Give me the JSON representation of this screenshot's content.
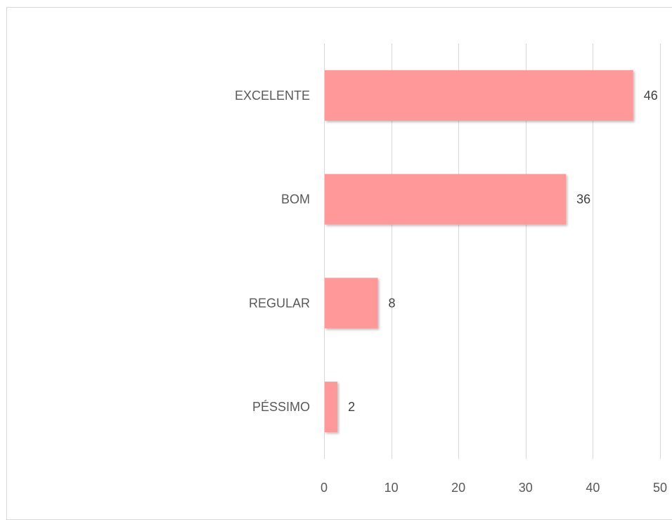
{
  "chart_data": {
    "type": "bar",
    "orientation": "horizontal",
    "categories": [
      "EXCELENTE",
      "BOM",
      "REGULAR",
      "PÉSSIMO"
    ],
    "values": [
      46,
      36,
      8,
      2
    ],
    "xlim": [
      0,
      50
    ],
    "xticks": [
      0,
      10,
      20,
      30,
      40,
      50
    ],
    "grid": "vertical",
    "bar_color": "#ff9999",
    "data_labels": true,
    "title": "",
    "xlabel": "",
    "ylabel": ""
  }
}
